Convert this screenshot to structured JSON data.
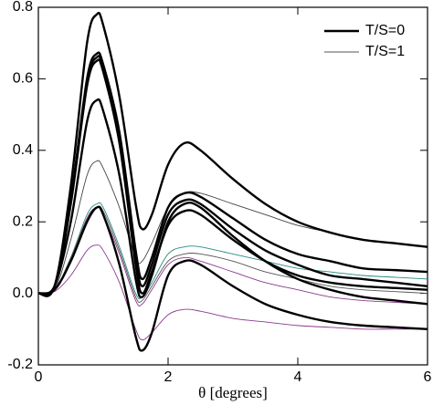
{
  "chart_data": {
    "type": "line",
    "xlabel": "θ [degrees]",
    "x": [
      0,
      0.25,
      0.5,
      0.75,
      0.9,
      1.0,
      1.25,
      1.5,
      1.6,
      1.75,
      2.0,
      2.25,
      2.5,
      3,
      3.5,
      4,
      4.5,
      5,
      5.5,
      6
    ],
    "xlim": [
      0,
      6
    ],
    "xticks": [
      0,
      2,
      4,
      6
    ],
    "ylim": [
      -0.2,
      0.8
    ],
    "yticks": [
      -0.2,
      {
        "value": 0,
        "label": "0.0"
      },
      0.2,
      0.4,
      0.6,
      0.8
    ],
    "legend": "upper right",
    "series": [
      {
        "name": "T/S=0",
        "color": "#000000",
        "width": 2.4,
        "lines": [
          [
            0,
            0.02,
            0.3,
            0.7,
            0.78,
            0.75,
            0.55,
            0.25,
            0.18,
            0.22,
            0.36,
            0.42,
            0.4,
            0.32,
            0.25,
            0.2,
            0.17,
            0.15,
            0.14,
            0.13
          ],
          [
            0,
            0.02,
            0.26,
            0.6,
            0.67,
            0.64,
            0.45,
            0.12,
            0.04,
            0.1,
            0.24,
            0.28,
            0.27,
            0.21,
            0.15,
            0.11,
            0.09,
            0.07,
            0.065,
            0.06
          ],
          [
            0,
            0.02,
            0.26,
            0.59,
            0.66,
            0.63,
            0.43,
            0.1,
            0.02,
            0.08,
            0.22,
            0.26,
            0.25,
            0.18,
            0.12,
            0.08,
            0.05,
            0.04,
            0.03,
            0.02
          ],
          [
            0,
            0.02,
            0.25,
            0.58,
            0.65,
            0.62,
            0.42,
            0.08,
            0.0,
            0.06,
            0.19,
            0.23,
            0.22,
            0.15,
            0.09,
            0.05,
            0.03,
            0.02,
            0.015,
            0.01
          ],
          [
            0,
            0.02,
            0.2,
            0.48,
            0.54,
            0.51,
            0.33,
            0.04,
            -0.01,
            0.05,
            0.2,
            0.25,
            0.24,
            0.16,
            0.09,
            0.04,
            0.01,
            -0.01,
            -0.02,
            -0.03
          ],
          [
            0,
            0.01,
            0.09,
            0.2,
            0.24,
            0.22,
            0.08,
            -0.12,
            -0.16,
            -0.11,
            0.05,
            0.09,
            0.08,
            0.02,
            -0.03,
            -0.06,
            -0.08,
            -0.09,
            -0.095,
            -0.1
          ]
        ]
      },
      {
        "name": "T/S=1",
        "color": "#555555",
        "width": 0.9,
        "line_colors": [
          "#444444",
          "#2a8a80",
          "#555555",
          "#8a3a8a",
          "#8a3a8a"
        ],
        "lines": [
          [
            0,
            0.01,
            0.15,
            0.33,
            0.37,
            0.35,
            0.24,
            0.1,
            0.09,
            0.14,
            0.24,
            0.28,
            0.28,
            0.25,
            0.22,
            0.19,
            0.17,
            0.15,
            0.14,
            0.13
          ],
          [
            0,
            0.01,
            0.1,
            0.22,
            0.25,
            0.24,
            0.13,
            0.0,
            -0.01,
            0.03,
            0.11,
            0.13,
            0.13,
            0.11,
            0.09,
            0.07,
            0.06,
            0.05,
            0.045,
            0.04
          ],
          [
            0,
            0.01,
            0.1,
            0.21,
            0.24,
            0.23,
            0.12,
            -0.01,
            -0.02,
            0.02,
            0.09,
            0.11,
            0.11,
            0.09,
            0.06,
            0.04,
            0.02,
            0.01,
            0.005,
            0.0
          ],
          [
            0,
            0.01,
            0.09,
            0.21,
            0.24,
            0.22,
            0.11,
            -0.02,
            -0.03,
            0.01,
            0.08,
            0.1,
            0.09,
            0.06,
            0.03,
            0.01,
            -0.01,
            -0.02,
            -0.025,
            -0.03
          ],
          [
            0,
            0.005,
            0.05,
            0.12,
            0.135,
            0.12,
            0.03,
            -0.1,
            -0.13,
            -0.11,
            -0.06,
            -0.045,
            -0.05,
            -0.07,
            -0.08,
            -0.09,
            -0.095,
            -0.1,
            -0.1,
            -0.1
          ]
        ]
      }
    ]
  }
}
